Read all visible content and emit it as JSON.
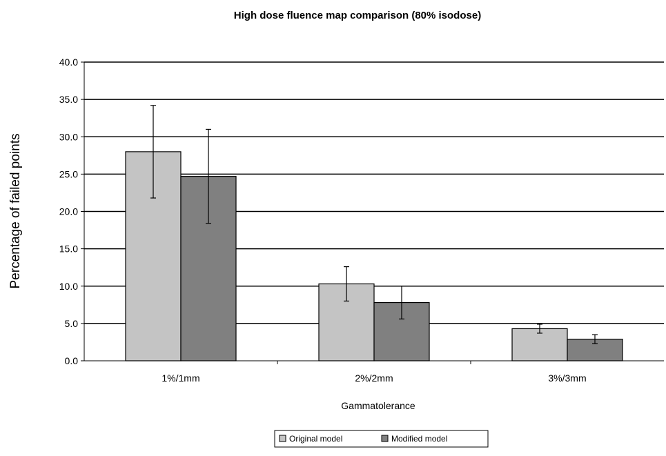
{
  "chart_data": {
    "type": "bar",
    "title": "High dose fluence map comparison (80% isodose)",
    "xlabel": "Gammatolerance",
    "ylabel": "Percentage of failed points",
    "ylim": [
      0,
      40
    ],
    "ytick_labels": [
      "0.0",
      "5.0",
      "10.0",
      "15.0",
      "20.0",
      "25.0",
      "30.0",
      "35.0",
      "40.0"
    ],
    "grid": true,
    "legend_position": "bottom",
    "categories": [
      "1%/1mm",
      "2%/2mm",
      "3%/3mm"
    ],
    "series": [
      {
        "name": "Original model",
        "color": "#c4c4c4",
        "values": [
          28.0,
          10.3,
          4.3
        ],
        "error": [
          6.2,
          2.3,
          0.6
        ]
      },
      {
        "name": "Modified model",
        "color": "#808080",
        "values": [
          24.7,
          7.8,
          2.9
        ],
        "error": [
          6.3,
          2.2,
          0.6
        ]
      }
    ]
  }
}
